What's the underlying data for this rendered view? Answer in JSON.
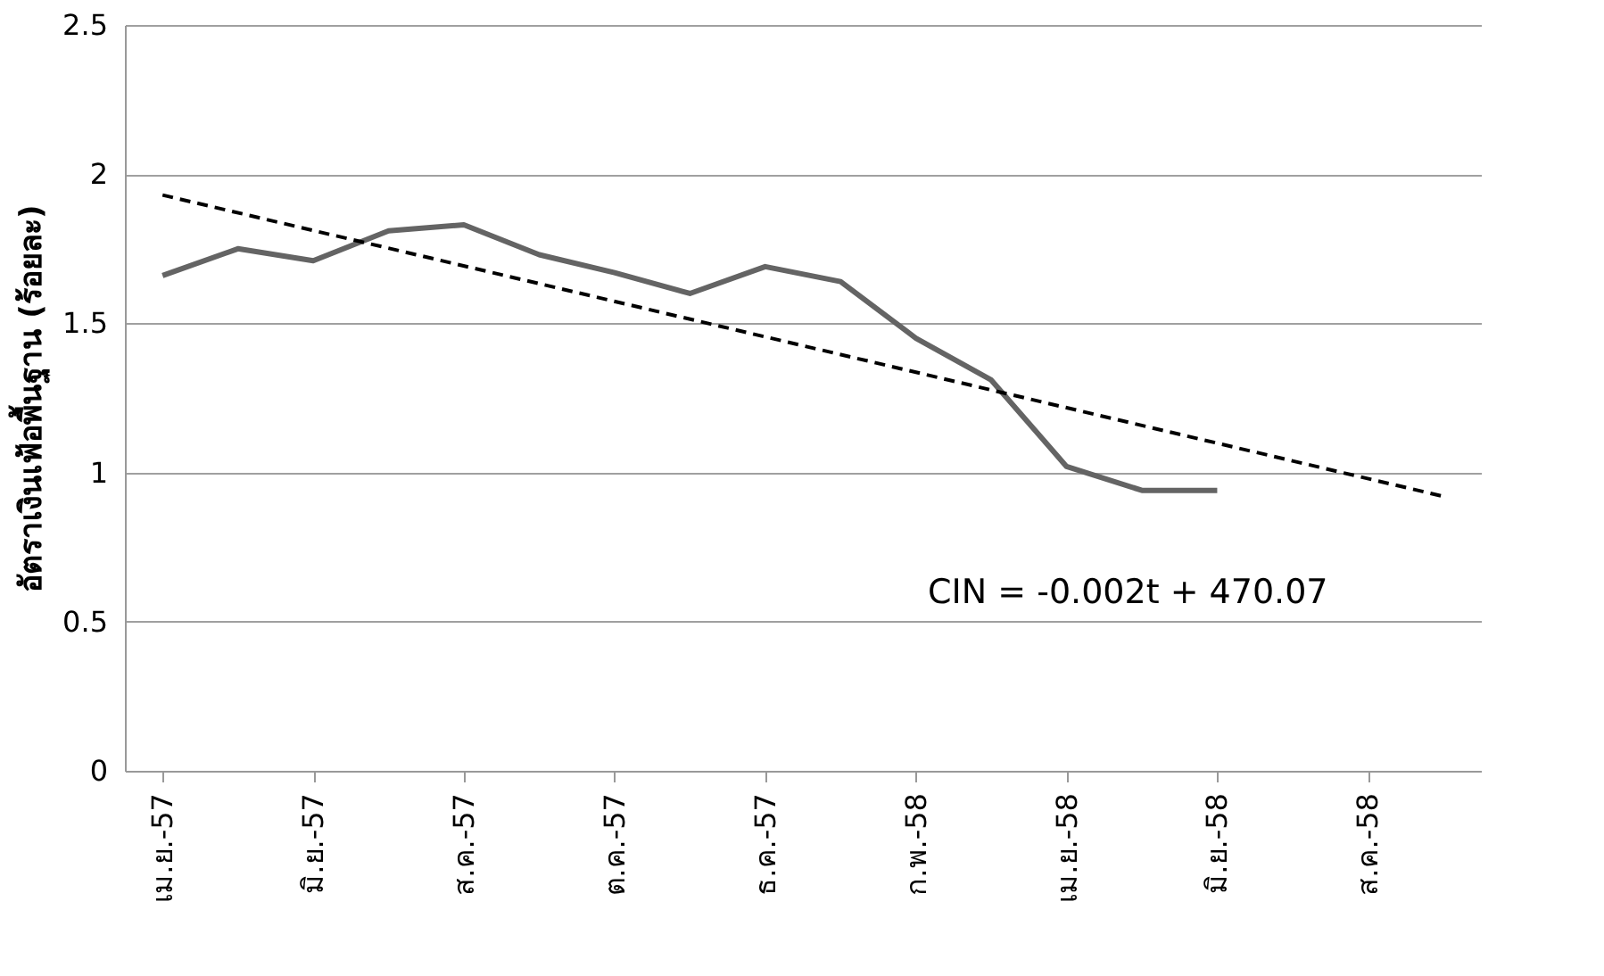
{
  "chart_data": {
    "type": "line",
    "ylabel": "อัตราเงินเฟ้อพื้นฐาน (ร้อยละ)",
    "categories": [
      "เม.ย.-57",
      null,
      "มิ.ย.-57",
      null,
      "ส.ค.-57",
      null,
      "ต.ค.-57",
      null,
      "ธ.ค.-57",
      null,
      "ก.พ.-58",
      null,
      "เม.ย.-58",
      null,
      "มิ.ย.-58",
      null,
      "ส.ค.-58",
      null
    ],
    "series": [
      {
        "color": "#646464",
        "line_style": "solid",
        "values": [
          1.66,
          1.75,
          1.71,
          1.81,
          1.83,
          1.73,
          1.67,
          1.6,
          1.69,
          1.64,
          1.45,
          1.31,
          1.02,
          0.94,
          0.94,
          null,
          null,
          null
        ]
      },
      {
        "color": "#000000",
        "line_style": "dashed",
        "values": [
          1.93,
          null,
          null,
          null,
          null,
          null,
          null,
          null,
          null,
          null,
          null,
          null,
          null,
          null,
          null,
          null,
          null,
          0.92
        ]
      }
    ],
    "ylim": [
      0,
      2.5
    ],
    "yticks": [
      0,
      0.5,
      1,
      1.5,
      2,
      2.5
    ],
    "grid": "y",
    "marker": "none",
    "annotations": [
      "CIN = -0.002t + 470.07"
    ]
  }
}
